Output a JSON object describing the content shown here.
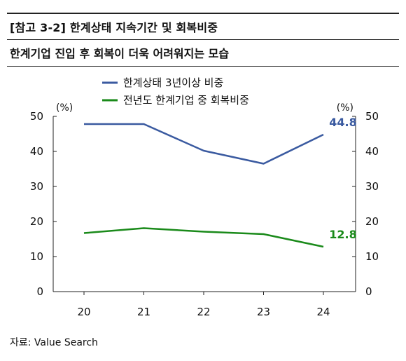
{
  "header": {
    "title": "[참고 3-2] 한계상태 지속기간 및 회복비중",
    "subtitle": "한계기업 진입 후 회복이 더욱 어려워지는 모습"
  },
  "footer": {
    "source": "자료: Value Search"
  },
  "chart_data": {
    "type": "line",
    "x": [
      "20",
      "21",
      "22",
      "23",
      "24"
    ],
    "series": [
      {
        "name": "한계상태 3년이상 비중",
        "values": [
          47.8,
          47.8,
          40.2,
          36.5,
          44.8
        ],
        "color": "#3a5aa0"
      },
      {
        "name": "전년도 한계기업 중 회복비중",
        "values": [
          16.7,
          18.1,
          17.1,
          16.4,
          12.8
        ],
        "color": "#1a8a1a"
      }
    ],
    "data_labels": [
      "44.8",
      "12.8"
    ],
    "ylim": [
      0,
      50
    ],
    "yticks": [
      0,
      10,
      20,
      30,
      40,
      50
    ],
    "left_unit": "(%)",
    "right_unit": "(%)",
    "legend_position": "top-center",
    "grid": false
  }
}
